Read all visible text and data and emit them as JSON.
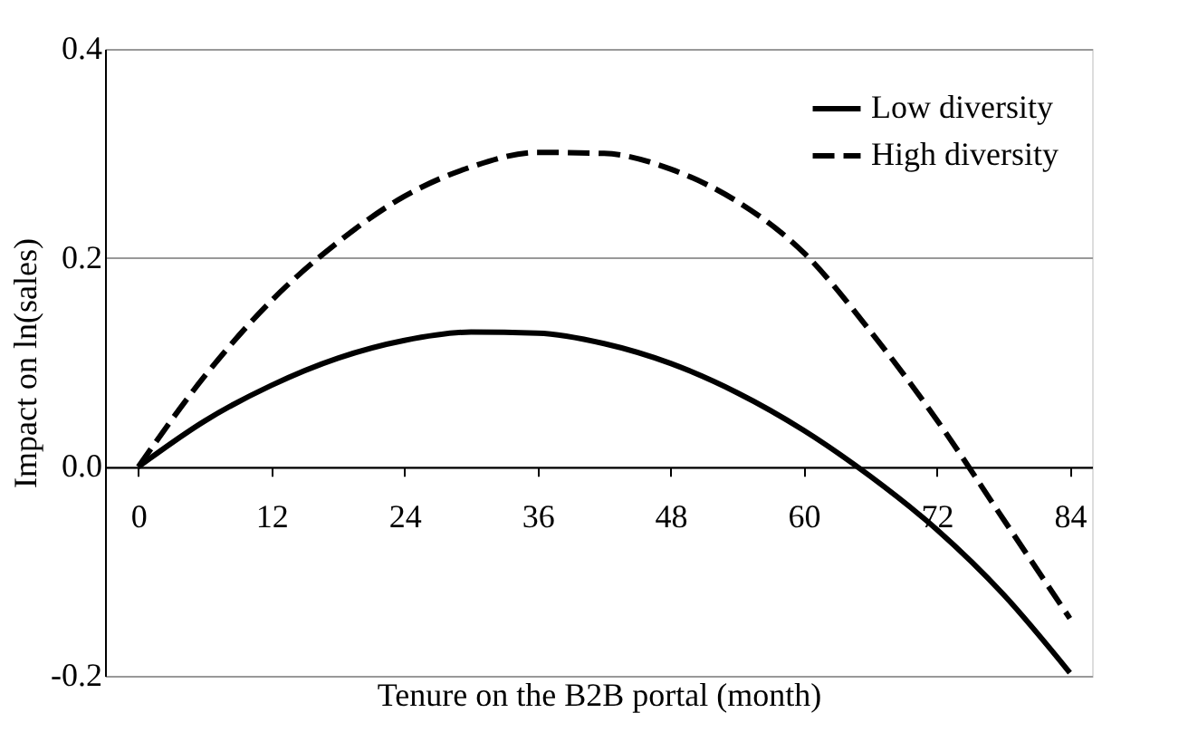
{
  "chart_data": {
    "type": "line",
    "xlabel": "Tenure on the B2B portal (month)",
    "ylabel": "Impact on ln(sales)",
    "x": [
      0,
      6,
      12,
      18,
      24,
      30,
      36,
      42,
      48,
      54,
      60,
      66,
      72,
      78,
      84
    ],
    "series": [
      {
        "name": "Low diversity",
        "color": "#000000",
        "line_style": "solid",
        "values": [
          0,
          0.044,
          0.078,
          0.104,
          0.121,
          0.129,
          0.128,
          0.118,
          0.099,
          0.071,
          0.035,
          -0.009,
          -0.06,
          -0.122,
          -0.197
        ]
      },
      {
        "name": "High diversity",
        "color": "#000000",
        "line_style": "dashed",
        "values": [
          0,
          0.087,
          0.159,
          0.215,
          0.259,
          0.287,
          0.301,
          0.3,
          0.285,
          0.254,
          0.205,
          0.13,
          0.045,
          -0.05,
          -0.145
        ]
      }
    ],
    "xlim": [
      -3,
      86
    ],
    "xticks": [
      0,
      12,
      24,
      36,
      48,
      60,
      72,
      84
    ],
    "ylim": [
      -0.2,
      0.4
    ],
    "yticks": [
      {
        "value": -0.2,
        "label": "-0.2"
      },
      {
        "value": 0,
        "label": "0.0"
      },
      {
        "value": 0.2,
        "label": "0.2"
      },
      {
        "value": 0.4,
        "label": "0.4"
      }
    ],
    "grid": "y",
    "legend": "top right",
    "marker": "none"
  }
}
